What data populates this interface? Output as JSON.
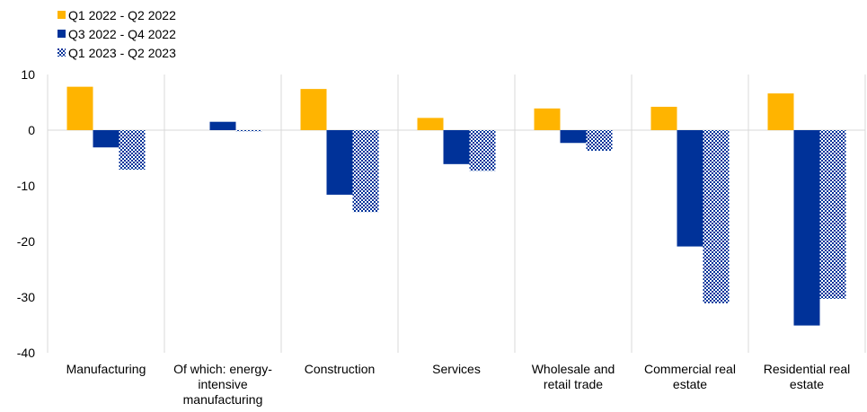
{
  "chart_data": {
    "type": "bar",
    "title": "",
    "xlabel": "",
    "ylabel": "",
    "ylim": [
      -40,
      10
    ],
    "yticks": [
      10,
      0,
      -10,
      -20,
      -30,
      -40
    ],
    "grid": "vertical category separators",
    "legend_position": "top-left",
    "categories": [
      [
        "Manufacturing"
      ],
      [
        "Of which: energy-",
        "intensive",
        "manufacturing"
      ],
      [
        "Construction"
      ],
      [
        "Services"
      ],
      [
        "Wholesale and",
        "retail trade"
      ],
      [
        "Commercial real",
        "estate"
      ],
      [
        "Residential real",
        "estate"
      ]
    ],
    "series": [
      {
        "name": "Q1 2022 - Q2 2022",
        "color": "#FFB400",
        "pattern": "solid",
        "values": [
          7.8,
          0,
          7.4,
          2.2,
          3.9,
          4.2,
          6.6
        ]
      },
      {
        "name": "Q3 2022 - Q4 2022",
        "color": "#003299",
        "pattern": "solid",
        "values": [
          -3.1,
          1.5,
          -11.6,
          -6.1,
          -2.3,
          -20.9,
          -35.1
        ]
      },
      {
        "name": "Q1 2023 - Q2 2023",
        "color": "#003299",
        "pattern": "checker",
        "values": [
          -7.1,
          -0.2,
          -14.7,
          -7.3,
          -3.7,
          -31.1,
          -30.3
        ]
      }
    ]
  }
}
